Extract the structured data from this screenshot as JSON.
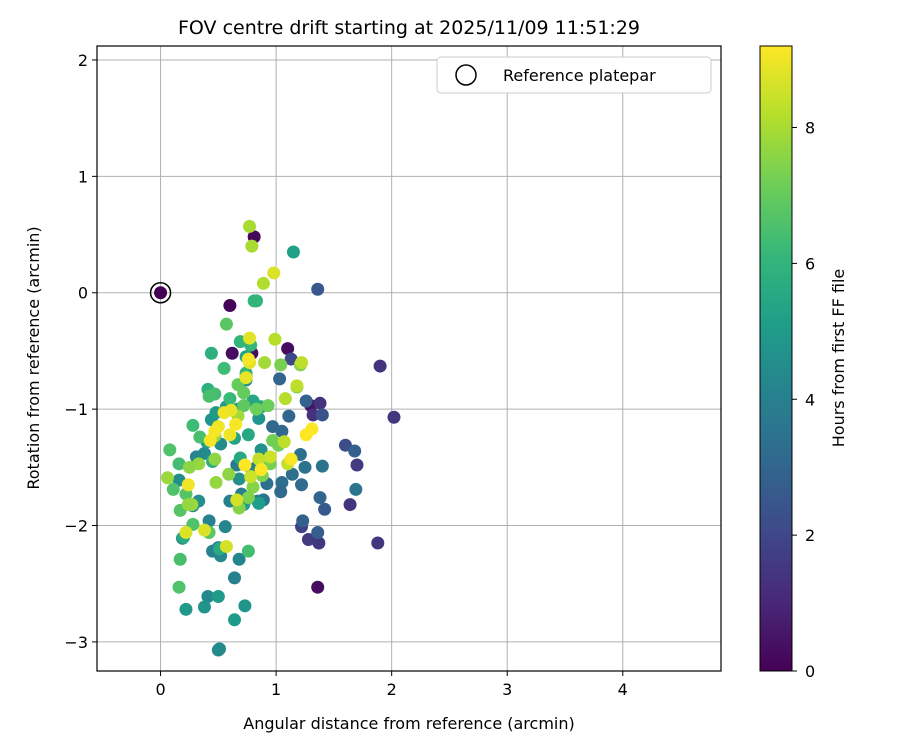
{
  "chart_data": {
    "type": "scatter",
    "title": "FOV centre drift starting at 2025/11/09 11:51:29",
    "xlabel": "Angular distance from reference (arcmin)",
    "ylabel": "Rotation from reference (arcmin)",
    "xlim": [
      -0.55,
      4.85
    ],
    "ylim": [
      -3.25,
      2.12
    ],
    "xticks": [
      0,
      1,
      2,
      3,
      4
    ],
    "yticks": [
      -3,
      -2,
      -1,
      0,
      1,
      2
    ],
    "grid": true,
    "legend": {
      "placement": "top-right",
      "entries": [
        {
          "label": "Reference platepar",
          "marker": "open-circle"
        }
      ]
    },
    "reference_point": {
      "x": 0,
      "y": 0
    },
    "colorbar": {
      "label": "Hours from first FF file",
      "min": 0,
      "max": 9.2,
      "ticks": [
        0,
        2,
        4,
        6,
        8
      ],
      "colormap": "viridis"
    },
    "colormap_stops": [
      "#440154",
      "#482878",
      "#3e4989",
      "#31688e",
      "#26828e",
      "#1f9e89",
      "#35b779",
      "#6ece58",
      "#b5de2b",
      "#fde725"
    ],
    "points": [
      [
        0.0,
        0.0,
        0.0
      ],
      [
        0.6,
        -0.11,
        0.1
      ],
      [
        0.81,
        0.48,
        0.2
      ],
      [
        1.1,
        -0.48,
        0.3
      ],
      [
        0.62,
        -0.52,
        0.3
      ],
      [
        1.36,
        -2.53,
        0.3
      ],
      [
        0.79,
        -0.52,
        0.4
      ],
      [
        1.3,
        -0.97,
        0.5
      ],
      [
        1.9,
        -0.63,
        1.4
      ],
      [
        2.02,
        -1.07,
        1.5
      ],
      [
        1.88,
        -2.15,
        1.5
      ],
      [
        1.64,
        -1.82,
        1.4
      ],
      [
        1.7,
        -1.48,
        1.6
      ],
      [
        1.38,
        -0.95,
        1.4
      ],
      [
        1.32,
        -1.05,
        1.3
      ],
      [
        1.37,
        -2.15,
        1.5
      ],
      [
        1.28,
        -2.12,
        1.6
      ],
      [
        1.22,
        -2.01,
        1.8
      ],
      [
        1.13,
        -0.57,
        2.0
      ],
      [
        1.36,
        0.03,
        2.5
      ],
      [
        1.4,
        -1.05,
        2.4
      ],
      [
        1.6,
        -1.31,
        2.2
      ],
      [
        1.68,
        -1.36,
        2.8
      ],
      [
        1.42,
        -1.86,
        2.6
      ],
      [
        1.38,
        -1.76,
        3.0
      ],
      [
        1.36,
        -2.06,
        2.7
      ],
      [
        1.23,
        -1.96,
        2.8
      ],
      [
        1.26,
        -0.93,
        2.9
      ],
      [
        1.03,
        -0.74,
        3.0
      ],
      [
        1.11,
        -1.06,
        3.0
      ],
      [
        0.97,
        -1.15,
        3.2
      ],
      [
        1.05,
        -1.19,
        3.1
      ],
      [
        1.05,
        -1.63,
        3.3
      ],
      [
        1.04,
        -1.71,
        3.1
      ],
      [
        1.14,
        -1.56,
        3.4
      ],
      [
        1.21,
        -1.39,
        3.4
      ],
      [
        1.25,
        -1.5,
        3.5
      ],
      [
        1.4,
        -1.49,
        3.5
      ],
      [
        1.69,
        -1.69,
        3.6
      ],
      [
        1.22,
        -1.65,
        3.2
      ],
      [
        0.89,
        -1.78,
        3.6
      ],
      [
        0.92,
        -1.64,
        3.4
      ],
      [
        0.84,
        -1.49,
        3.3
      ],
      [
        0.84,
        -1.79,
        3.8
      ],
      [
        0.66,
        -1.48,
        3.8
      ],
      [
        0.7,
        -1.73,
        3.9
      ],
      [
        0.79,
        -1.52,
        4.0
      ],
      [
        0.6,
        -1.79,
        4.0
      ],
      [
        0.64,
        -2.45,
        4.0
      ],
      [
        0.45,
        -2.22,
        4.1
      ],
      [
        0.42,
        -1.96,
        4.1
      ],
      [
        0.5,
        -2.19,
        4.1
      ],
      [
        0.56,
        -2.01,
        4.2
      ],
      [
        0.52,
        -2.26,
        4.3
      ],
      [
        0.68,
        -2.29,
        4.2
      ],
      [
        0.41,
        -2.61,
        4.3
      ],
      [
        0.5,
        -3.07,
        4.3
      ],
      [
        0.51,
        -3.06,
        4.4
      ],
      [
        0.19,
        -2.11,
        4.5
      ],
      [
        0.38,
        -1.38,
        4.4
      ],
      [
        0.31,
        -1.41,
        4.2
      ],
      [
        0.16,
        -1.61,
        4.5
      ],
      [
        0.28,
        -1.83,
        4.3
      ],
      [
        0.33,
        -1.79,
        4.6
      ],
      [
        0.52,
        -1.3,
        4.5
      ],
      [
        0.68,
        -1.6,
        4.6
      ],
      [
        0.73,
        -1.79,
        4.5
      ],
      [
        0.87,
        -1.35,
        4.7
      ],
      [
        0.85,
        -1.08,
        4.8
      ],
      [
        0.84,
        -0.98,
        4.7
      ],
      [
        0.74,
        -0.75,
        4.6
      ],
      [
        0.67,
        -1.0,
        4.9
      ],
      [
        0.57,
        -0.98,
        4.9
      ],
      [
        0.44,
        -1.09,
        4.8
      ],
      [
        0.48,
        -1.03,
        5.0
      ],
      [
        0.4,
        -1.28,
        5.1
      ],
      [
        0.22,
        -2.72,
        4.9
      ],
      [
        0.38,
        -2.7,
        4.8
      ],
      [
        0.5,
        -2.61,
        5.0
      ],
      [
        0.64,
        -2.81,
        5.0
      ],
      [
        0.73,
        -2.69,
        4.8
      ],
      [
        1.15,
        0.35,
        5.2
      ],
      [
        0.85,
        -1.81,
        5.1
      ],
      [
        0.72,
        -1.82,
        5.2
      ],
      [
        0.87,
        -0.98,
        5.3
      ],
      [
        0.74,
        -0.55,
        5.3
      ],
      [
        0.8,
        -0.93,
        5.4
      ],
      [
        0.64,
        -1.25,
        5.4
      ],
      [
        0.76,
        -1.22,
        5.5
      ],
      [
        0.69,
        -1.42,
        5.5
      ],
      [
        0.2,
        -2.1,
        5.6
      ],
      [
        0.51,
        -2.2,
        5.6
      ],
      [
        0.45,
        -1.45,
        5.7
      ],
      [
        0.41,
        -0.83,
        5.8
      ],
      [
        0.44,
        -0.52,
        5.8
      ],
      [
        0.83,
        -0.07,
        5.9
      ],
      [
        0.81,
        -0.07,
        6.0
      ],
      [
        0.69,
        -0.42,
        6.1
      ],
      [
        0.78,
        -0.45,
        6.1
      ],
      [
        0.74,
        -0.69,
        6.0
      ],
      [
        0.74,
        -0.72,
        6.2
      ],
      [
        0.6,
        -0.91,
        6.2
      ],
      [
        0.55,
        -0.65,
        6.3
      ],
      [
        0.47,
        -0.87,
        6.4
      ],
      [
        0.42,
        -0.89,
        6.5
      ],
      [
        0.34,
        -1.24,
        6.5
      ],
      [
        0.28,
        -1.14,
        6.3
      ],
      [
        0.16,
        -1.47,
        6.4
      ],
      [
        0.08,
        -1.35,
        6.6
      ],
      [
        0.11,
        -1.69,
        6.6
      ],
      [
        0.17,
        -1.87,
        6.7
      ],
      [
        0.22,
        -1.73,
        6.7
      ],
      [
        0.28,
        -1.99,
        6.6
      ],
      [
        0.42,
        -2.06,
        6.8
      ],
      [
        0.17,
        -2.29,
        6.5
      ],
      [
        0.16,
        -2.53,
        6.6
      ],
      [
        0.76,
        -2.22,
        6.4
      ],
      [
        0.57,
        -0.27,
        6.8
      ],
      [
        0.72,
        -0.86,
        7.0
      ],
      [
        0.67,
        -0.79,
        7.0
      ],
      [
        0.72,
        -0.97,
        6.9
      ],
      [
        0.83,
        -1.0,
        7.1
      ],
      [
        0.93,
        -0.97,
        7.1
      ],
      [
        0.97,
        -1.27,
        7.2
      ],
      [
        1.02,
        -1.31,
        7.2
      ],
      [
        1.04,
        -0.62,
        7.3
      ],
      [
        1.18,
        -0.81,
        7.3
      ],
      [
        1.21,
        -0.62,
        7.4
      ],
      [
        0.95,
        -1.47,
        7.3
      ],
      [
        0.88,
        -1.57,
        7.4
      ],
      [
        0.8,
        -1.67,
        7.5
      ],
      [
        0.76,
        -1.76,
        7.4
      ],
      [
        0.68,
        -1.85,
        7.5
      ],
      [
        0.59,
        -1.56,
        7.6
      ],
      [
        0.47,
        -1.43,
        7.6
      ],
      [
        0.48,
        -1.63,
        7.7
      ],
      [
        0.33,
        -1.47,
        7.7
      ],
      [
        0.27,
        -1.82,
        7.8
      ],
      [
        0.24,
        -1.82,
        7.7
      ],
      [
        0.06,
        -1.59,
        7.8
      ],
      [
        0.25,
        -1.5,
        7.6
      ],
      [
        0.47,
        -1.23,
        7.7
      ],
      [
        0.67,
        -1.06,
        7.9
      ],
      [
        0.9,
        -0.6,
        7.9
      ],
      [
        0.79,
        0.4,
        8.0
      ],
      [
        0.77,
        0.57,
        8.0
      ],
      [
        0.89,
        0.08,
        8.1
      ],
      [
        0.99,
        -0.4,
        8.2
      ],
      [
        1.22,
        -0.6,
        8.3
      ],
      [
        1.18,
        -0.8,
        8.3
      ],
      [
        1.08,
        -0.91,
        8.2
      ],
      [
        1.07,
        -1.28,
        8.3
      ],
      [
        1.1,
        -1.47,
        8.4
      ],
      [
        0.95,
        -1.41,
        8.5
      ],
      [
        0.85,
        -1.43,
        8.4
      ],
      [
        0.78,
        -1.58,
        8.5
      ],
      [
        0.66,
        -1.78,
        8.6
      ],
      [
        0.57,
        -2.18,
        8.6
      ],
      [
        0.38,
        -2.04,
        8.7
      ],
      [
        0.22,
        -2.06,
        8.7
      ],
      [
        0.98,
        0.17,
        8.7
      ],
      [
        0.77,
        -0.39,
        8.8
      ],
      [
        0.77,
        -0.6,
        8.8
      ],
      [
        0.74,
        -0.73,
        8.9
      ],
      [
        0.61,
        -1.01,
        8.9
      ],
      [
        0.55,
        -1.03,
        9.0
      ],
      [
        0.5,
        -1.15,
        9.0
      ],
      [
        0.47,
        -1.19,
        9.1
      ],
      [
        0.43,
        -1.27,
        9.1
      ],
      [
        0.6,
        -1.22,
        9.0
      ],
      [
        0.65,
        -1.13,
        9.1
      ],
      [
        0.73,
        -1.48,
        9.2
      ],
      [
        0.87,
        -1.52,
        9.2
      ],
      [
        1.13,
        -1.43,
        9.1
      ],
      [
        1.26,
        -1.22,
        9.2
      ],
      [
        1.31,
        -1.17,
        9.2
      ],
      [
        0.76,
        -0.57,
        9.1
      ],
      [
        0.24,
        -1.65,
        9.0
      ]
    ]
  }
}
